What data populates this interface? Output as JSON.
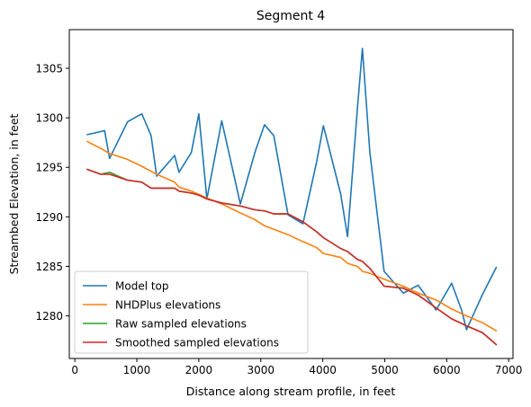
{
  "chart_data": {
    "type": "line",
    "title": "Segment 4",
    "xlabel": "Distance along stream profile, in feet",
    "ylabel": "Streambed Elevation, in feet",
    "xlim": [
      -90,
      7070
    ],
    "ylim": [
      1275.7,
      1308.9
    ],
    "x_ticks": [
      0,
      1000,
      2000,
      3000,
      4000,
      5000,
      6000,
      7000
    ],
    "y_ticks": [
      1280,
      1285,
      1290,
      1295,
      1300,
      1305
    ],
    "legend_position": "lower-left",
    "grid": false,
    "series": [
      {
        "name": "Model top",
        "color": "#1f77b4",
        "points": [
          [
            200,
            1298.3
          ],
          [
            480,
            1298.7
          ],
          [
            560,
            1295.9
          ],
          [
            850,
            1299.6
          ],
          [
            1080,
            1300.4
          ],
          [
            1230,
            1298.2
          ],
          [
            1320,
            1294.1
          ],
          [
            1610,
            1296.2
          ],
          [
            1680,
            1294.5
          ],
          [
            1880,
            1296.5
          ],
          [
            2000,
            1300.4
          ],
          [
            2130,
            1291.8
          ],
          [
            2370,
            1299.7
          ],
          [
            2670,
            1291.3
          ],
          [
            2910,
            1296.6
          ],
          [
            3060,
            1299.3
          ],
          [
            3210,
            1298.2
          ],
          [
            3440,
            1290.2
          ],
          [
            3680,
            1289.3
          ],
          [
            3900,
            1295.5
          ],
          [
            4010,
            1299.2
          ],
          [
            4290,
            1292.3
          ],
          [
            4400,
            1288.0
          ],
          [
            4560,
            1301.0
          ],
          [
            4640,
            1307.0
          ],
          [
            4760,
            1296.5
          ],
          [
            4990,
            1284.5
          ],
          [
            5300,
            1282.3
          ],
          [
            5540,
            1283.1
          ],
          [
            5830,
            1280.6
          ],
          [
            6080,
            1283.3
          ],
          [
            6240,
            1280.6
          ],
          [
            6320,
            1278.6
          ],
          [
            6580,
            1282.2
          ],
          [
            6800,
            1284.9
          ]
        ]
      },
      {
        "name": "NHDPlus elevations",
        "color": "#ff7f0e",
        "points": [
          [
            200,
            1297.6
          ],
          [
            420,
            1296.9
          ],
          [
            560,
            1296.4
          ],
          [
            850,
            1295.8
          ],
          [
            1080,
            1295.1
          ],
          [
            1320,
            1294.3
          ],
          [
            1610,
            1293.5
          ],
          [
            1680,
            1293.0
          ],
          [
            1880,
            1292.6
          ],
          [
            2130,
            1291.9
          ],
          [
            2370,
            1291.3
          ],
          [
            2670,
            1290.4
          ],
          [
            2910,
            1289.7
          ],
          [
            3060,
            1289.1
          ],
          [
            3440,
            1288.2
          ],
          [
            3680,
            1287.5
          ],
          [
            3900,
            1286.9
          ],
          [
            4010,
            1286.3
          ],
          [
            4290,
            1285.9
          ],
          [
            4400,
            1285.3
          ],
          [
            4560,
            1285.0
          ],
          [
            4640,
            1284.5
          ],
          [
            4760,
            1284.3
          ],
          [
            4990,
            1283.7
          ],
          [
            5300,
            1283.0
          ],
          [
            5540,
            1282.3
          ],
          [
            5830,
            1281.6
          ],
          [
            6080,
            1280.7
          ],
          [
            6320,
            1280.0
          ],
          [
            6580,
            1279.3
          ],
          [
            6800,
            1278.5
          ]
        ]
      },
      {
        "name": "Raw sampled elevations",
        "color": "#2ca02c",
        "points": [
          [
            200,
            1294.8
          ],
          [
            420,
            1294.3
          ],
          [
            560,
            1294.5
          ],
          [
            850,
            1293.7
          ],
          [
            1080,
            1293.5
          ],
          [
            1230,
            1292.9
          ],
          [
            1610,
            1292.9
          ],
          [
            1680,
            1292.6
          ],
          [
            1880,
            1292.4
          ],
          [
            2000,
            1292.2
          ],
          [
            2130,
            1291.8
          ],
          [
            2370,
            1291.4
          ],
          [
            2670,
            1291.1
          ],
          [
            2910,
            1290.7
          ],
          [
            3060,
            1290.6
          ],
          [
            3210,
            1290.3
          ],
          [
            3440,
            1290.3
          ],
          [
            3680,
            1289.5
          ],
          [
            3900,
            1288.5
          ],
          [
            4010,
            1287.9
          ],
          [
            4290,
            1286.8
          ],
          [
            4400,
            1286.5
          ],
          [
            4560,
            1285.7
          ],
          [
            4640,
            1285.5
          ],
          [
            4760,
            1284.8
          ],
          [
            4990,
            1283.0
          ],
          [
            5300,
            1282.8
          ],
          [
            5540,
            1282.1
          ],
          [
            5830,
            1280.8
          ],
          [
            6080,
            1279.7
          ],
          [
            6320,
            1279.0
          ],
          [
            6580,
            1278.3
          ],
          [
            6800,
            1277.1
          ]
        ]
      },
      {
        "name": "Smoothed sampled elevations",
        "color": "#d62728",
        "points": [
          [
            200,
            1294.8
          ],
          [
            420,
            1294.3
          ],
          [
            560,
            1294.3
          ],
          [
            850,
            1293.7
          ],
          [
            1080,
            1293.5
          ],
          [
            1230,
            1292.9
          ],
          [
            1610,
            1292.9
          ],
          [
            1680,
            1292.6
          ],
          [
            1880,
            1292.4
          ],
          [
            2000,
            1292.2
          ],
          [
            2130,
            1291.8
          ],
          [
            2370,
            1291.4
          ],
          [
            2670,
            1291.1
          ],
          [
            2910,
            1290.7
          ],
          [
            3060,
            1290.6
          ],
          [
            3210,
            1290.3
          ],
          [
            3440,
            1290.3
          ],
          [
            3680,
            1289.5
          ],
          [
            3900,
            1288.5
          ],
          [
            4010,
            1287.9
          ],
          [
            4290,
            1286.8
          ],
          [
            4400,
            1286.5
          ],
          [
            4560,
            1285.7
          ],
          [
            4640,
            1285.5
          ],
          [
            4760,
            1284.8
          ],
          [
            4990,
            1283.0
          ],
          [
            5300,
            1282.8
          ],
          [
            5540,
            1282.1
          ],
          [
            5830,
            1280.8
          ],
          [
            6080,
            1279.7
          ],
          [
            6320,
            1279.0
          ],
          [
            6580,
            1278.3
          ],
          [
            6800,
            1277.1
          ]
        ]
      }
    ]
  }
}
